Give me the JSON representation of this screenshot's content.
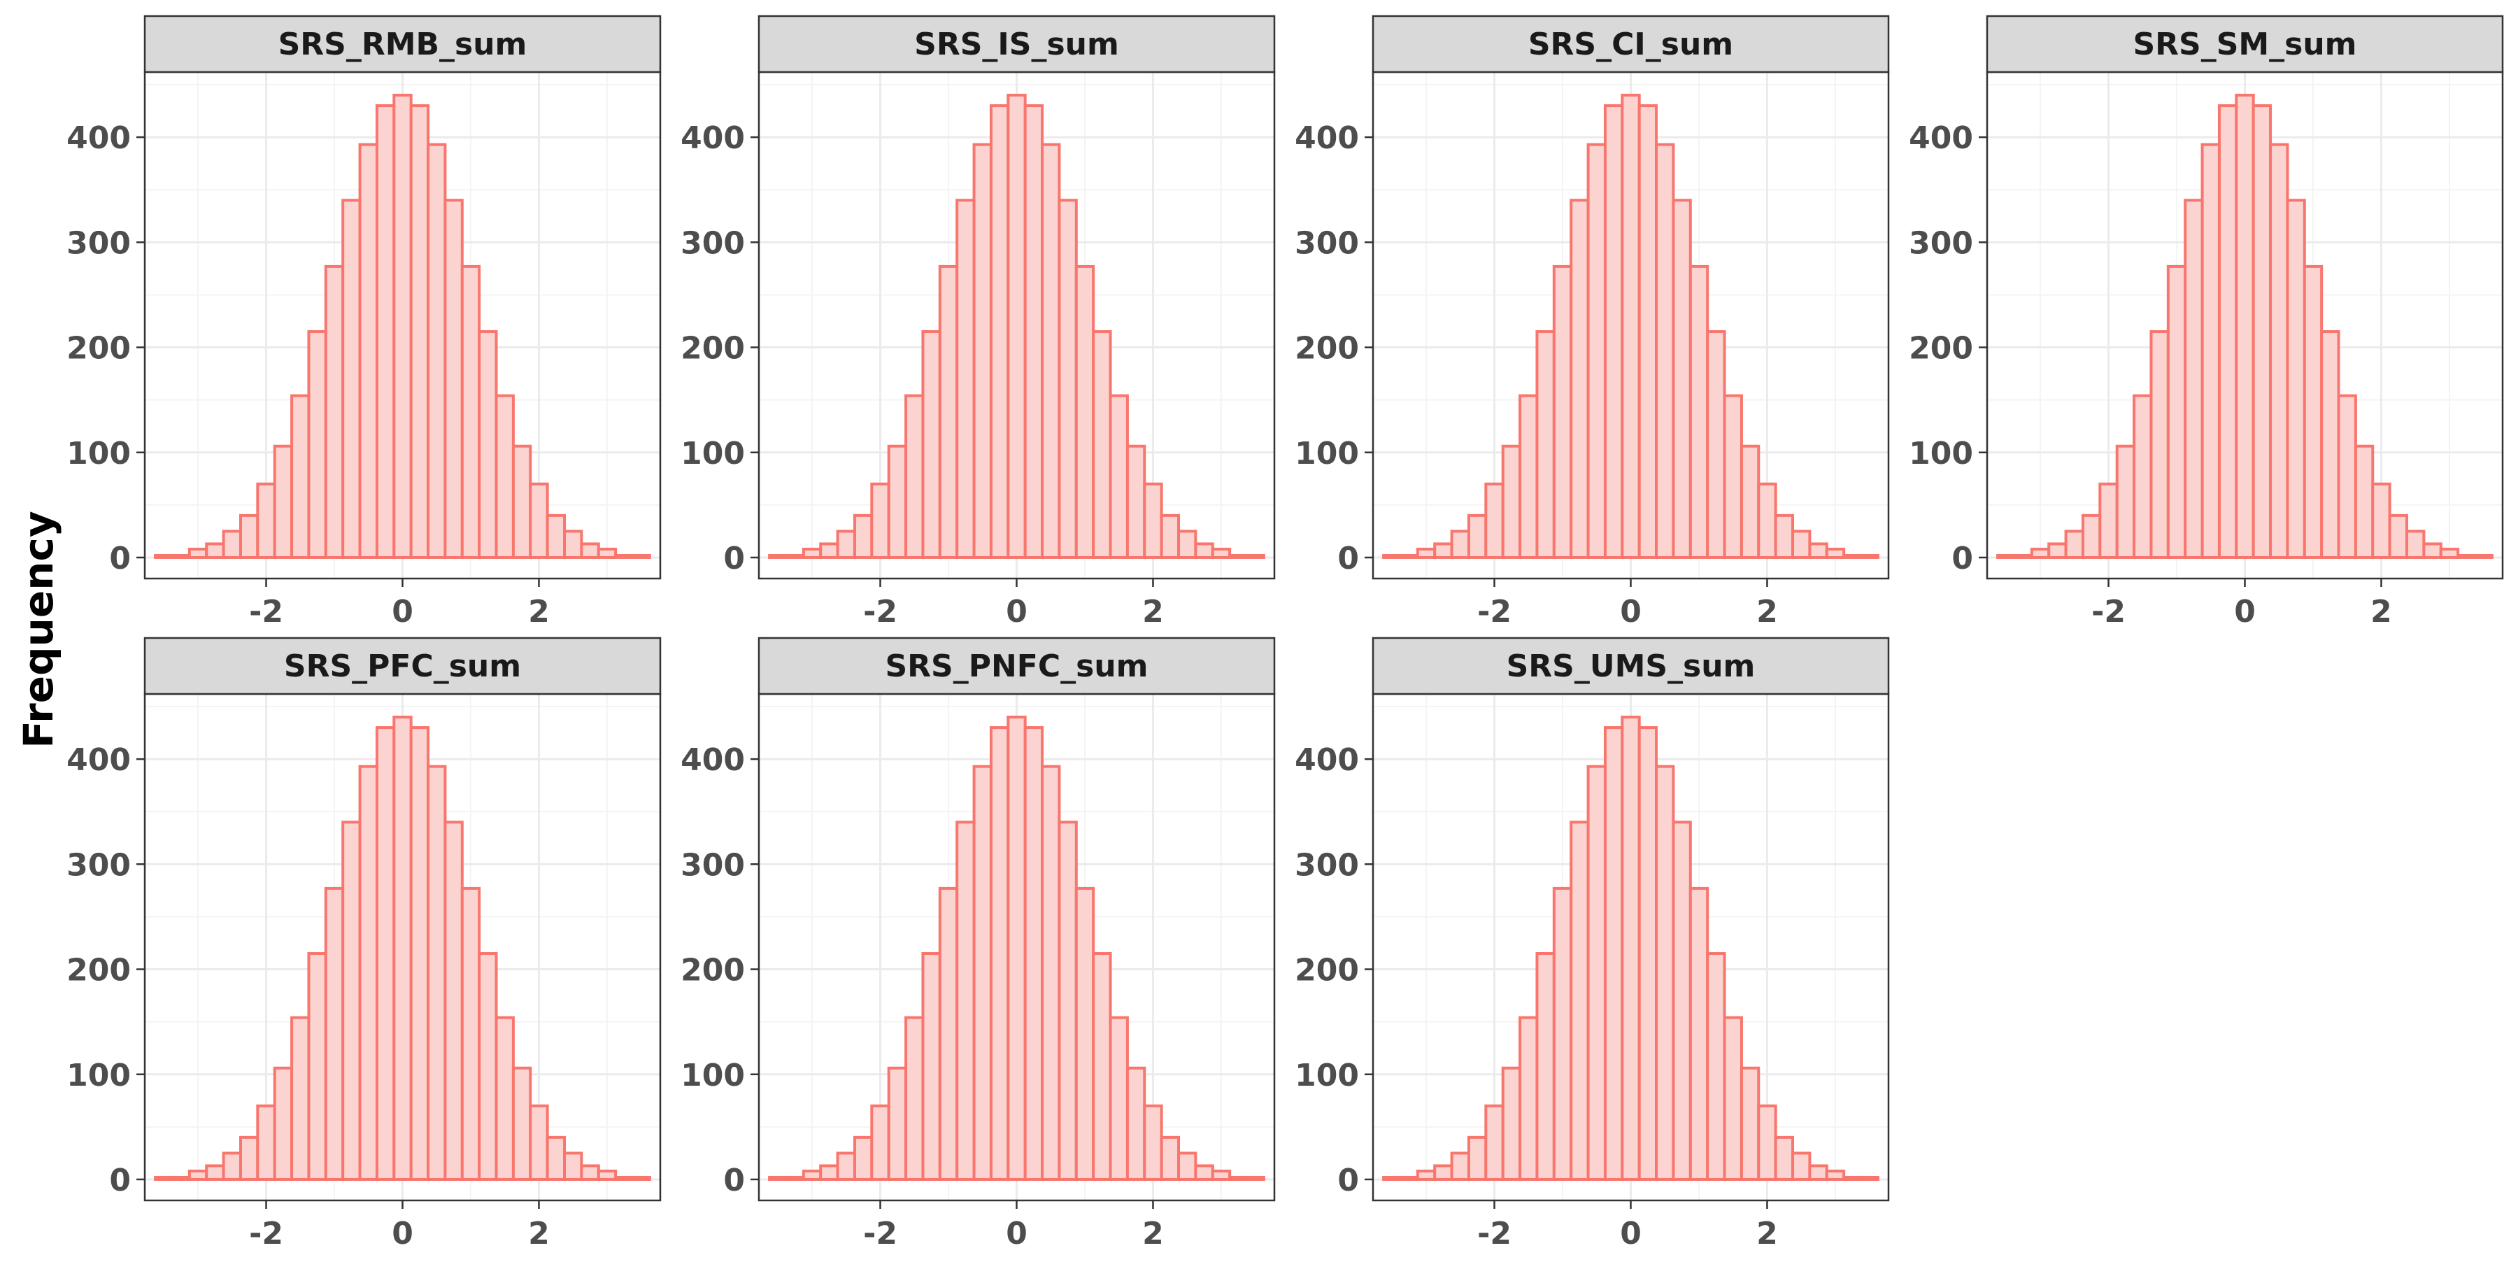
{
  "figure": {
    "ylabel": "Frequency"
  },
  "style": {
    "bar_fill": "#fbd4d1",
    "bar_stroke": "#f8766d",
    "strip_fill": "#d9d9d9",
    "panel_border": "#333333",
    "grid_major": "#ebebeb",
    "grid_minor": "#f4f4f4",
    "tick_label_color": "#4d4d4d"
  },
  "chart_data": [
    {
      "type": "bar",
      "title": "SRS_RMB_sum",
      "bin_width": 0.25,
      "bin_centers": [
        -3.5,
        -3.25,
        -3.0,
        -2.75,
        -2.5,
        -2.25,
        -2.0,
        -1.75,
        -1.5,
        -1.25,
        -1.0,
        -0.75,
        -0.5,
        -0.25,
        0.0,
        0.25,
        0.5,
        0.75,
        1.0,
        1.25,
        1.5,
        1.75,
        2.0,
        2.25,
        2.5,
        2.75,
        3.0,
        3.25,
        3.5
      ],
      "values": [
        2,
        2,
        8,
        13,
        25,
        40,
        70,
        106,
        154,
        215,
        277,
        340,
        393,
        430,
        440,
        430,
        393,
        340,
        277,
        215,
        154,
        106,
        70,
        40,
        25,
        13,
        8,
        2,
        2
      ],
      "xlim": [
        -3.78,
        3.78
      ],
      "ylim": [
        -20,
        462
      ],
      "xticks": [
        -2,
        0,
        2
      ],
      "yticks": [
        0,
        100,
        200,
        300,
        400
      ],
      "xlabel": "",
      "ylabel": "Frequency"
    },
    {
      "type": "bar",
      "title": "SRS_IS_sum",
      "bin_width": 0.25,
      "bin_centers": [
        -3.5,
        -3.25,
        -3.0,
        -2.75,
        -2.5,
        -2.25,
        -2.0,
        -1.75,
        -1.5,
        -1.25,
        -1.0,
        -0.75,
        -0.5,
        -0.25,
        0.0,
        0.25,
        0.5,
        0.75,
        1.0,
        1.25,
        1.5,
        1.75,
        2.0,
        2.25,
        2.5,
        2.75,
        3.0,
        3.25,
        3.5
      ],
      "values": [
        2,
        2,
        8,
        13,
        25,
        40,
        70,
        106,
        154,
        215,
        277,
        340,
        393,
        430,
        440,
        430,
        393,
        340,
        277,
        215,
        154,
        106,
        70,
        40,
        25,
        13,
        8,
        2,
        2
      ],
      "xlim": [
        -3.78,
        3.78
      ],
      "ylim": [
        -20,
        462
      ],
      "xticks": [
        -2,
        0,
        2
      ],
      "yticks": [
        0,
        100,
        200,
        300,
        400
      ],
      "xlabel": "",
      "ylabel": "Frequency"
    },
    {
      "type": "bar",
      "title": "SRS_CI_sum",
      "bin_width": 0.25,
      "bin_centers": [
        -3.5,
        -3.25,
        -3.0,
        -2.75,
        -2.5,
        -2.25,
        -2.0,
        -1.75,
        -1.5,
        -1.25,
        -1.0,
        -0.75,
        -0.5,
        -0.25,
        0.0,
        0.25,
        0.5,
        0.75,
        1.0,
        1.25,
        1.5,
        1.75,
        2.0,
        2.25,
        2.5,
        2.75,
        3.0,
        3.25,
        3.5
      ],
      "values": [
        2,
        2,
        8,
        13,
        25,
        40,
        70,
        106,
        154,
        215,
        277,
        340,
        393,
        430,
        440,
        430,
        393,
        340,
        277,
        215,
        154,
        106,
        70,
        40,
        25,
        13,
        8,
        2,
        2
      ],
      "xlim": [
        -3.78,
        3.78
      ],
      "ylim": [
        -20,
        462
      ],
      "xticks": [
        -2,
        0,
        2
      ],
      "yticks": [
        0,
        100,
        200,
        300,
        400
      ],
      "xlabel": "",
      "ylabel": "Frequency"
    },
    {
      "type": "bar",
      "title": "SRS_SM_sum",
      "bin_width": 0.25,
      "bin_centers": [
        -3.5,
        -3.25,
        -3.0,
        -2.75,
        -2.5,
        -2.25,
        -2.0,
        -1.75,
        -1.5,
        -1.25,
        -1.0,
        -0.75,
        -0.5,
        -0.25,
        0.0,
        0.25,
        0.5,
        0.75,
        1.0,
        1.25,
        1.5,
        1.75,
        2.0,
        2.25,
        2.5,
        2.75,
        3.0,
        3.25,
        3.5
      ],
      "values": [
        2,
        2,
        8,
        13,
        25,
        40,
        70,
        106,
        154,
        215,
        277,
        340,
        393,
        430,
        440,
        430,
        393,
        340,
        277,
        215,
        154,
        106,
        70,
        40,
        25,
        13,
        8,
        2,
        2
      ],
      "xlim": [
        -3.78,
        3.78
      ],
      "ylim": [
        -20,
        462
      ],
      "xticks": [
        -2,
        0,
        2
      ],
      "yticks": [
        0,
        100,
        200,
        300,
        400
      ],
      "xlabel": "",
      "ylabel": "Frequency"
    },
    {
      "type": "bar",
      "title": "SRS_PFC_sum",
      "bin_width": 0.25,
      "bin_centers": [
        -3.5,
        -3.25,
        -3.0,
        -2.75,
        -2.5,
        -2.25,
        -2.0,
        -1.75,
        -1.5,
        -1.25,
        -1.0,
        -0.75,
        -0.5,
        -0.25,
        0.0,
        0.25,
        0.5,
        0.75,
        1.0,
        1.25,
        1.5,
        1.75,
        2.0,
        2.25,
        2.5,
        2.75,
        3.0,
        3.25,
        3.5
      ],
      "values": [
        2,
        2,
        8,
        13,
        25,
        40,
        70,
        106,
        154,
        215,
        277,
        340,
        393,
        430,
        440,
        430,
        393,
        340,
        277,
        215,
        154,
        106,
        70,
        40,
        25,
        13,
        8,
        2,
        2
      ],
      "xlim": [
        -3.78,
        3.78
      ],
      "ylim": [
        -20,
        462
      ],
      "xticks": [
        -2,
        0,
        2
      ],
      "yticks": [
        0,
        100,
        200,
        300,
        400
      ],
      "xlabel": "",
      "ylabel": "Frequency"
    },
    {
      "type": "bar",
      "title": "SRS_PNFC_sum",
      "bin_width": 0.25,
      "bin_centers": [
        -3.5,
        -3.25,
        -3.0,
        -2.75,
        -2.5,
        -2.25,
        -2.0,
        -1.75,
        -1.5,
        -1.25,
        -1.0,
        -0.75,
        -0.5,
        -0.25,
        0.0,
        0.25,
        0.5,
        0.75,
        1.0,
        1.25,
        1.5,
        1.75,
        2.0,
        2.25,
        2.5,
        2.75,
        3.0,
        3.25,
        3.5
      ],
      "values": [
        2,
        2,
        8,
        13,
        25,
        40,
        70,
        106,
        154,
        215,
        277,
        340,
        393,
        430,
        440,
        430,
        393,
        340,
        277,
        215,
        154,
        106,
        70,
        40,
        25,
        13,
        8,
        2,
        2
      ],
      "xlim": [
        -3.78,
        3.78
      ],
      "ylim": [
        -20,
        462
      ],
      "xticks": [
        -2,
        0,
        2
      ],
      "yticks": [
        0,
        100,
        200,
        300,
        400
      ],
      "xlabel": "",
      "ylabel": "Frequency"
    },
    {
      "type": "bar",
      "title": "SRS_UMS_sum",
      "bin_width": 0.25,
      "bin_centers": [
        -3.5,
        -3.25,
        -3.0,
        -2.75,
        -2.5,
        -2.25,
        -2.0,
        -1.75,
        -1.5,
        -1.25,
        -1.0,
        -0.75,
        -0.5,
        -0.25,
        0.0,
        0.25,
        0.5,
        0.75,
        1.0,
        1.25,
        1.5,
        1.75,
        2.0,
        2.25,
        2.5,
        2.75,
        3.0,
        3.25,
        3.5
      ],
      "values": [
        2,
        2,
        8,
        13,
        25,
        40,
        70,
        106,
        154,
        215,
        277,
        340,
        393,
        430,
        440,
        430,
        393,
        340,
        277,
        215,
        154,
        106,
        70,
        40,
        25,
        13,
        8,
        2,
        2
      ],
      "xlim": [
        -3.78,
        3.78
      ],
      "ylim": [
        -20,
        462
      ],
      "xticks": [
        -2,
        0,
        2
      ],
      "yticks": [
        0,
        100,
        200,
        300,
        400
      ],
      "xlabel": "",
      "ylabel": "Frequency"
    }
  ]
}
